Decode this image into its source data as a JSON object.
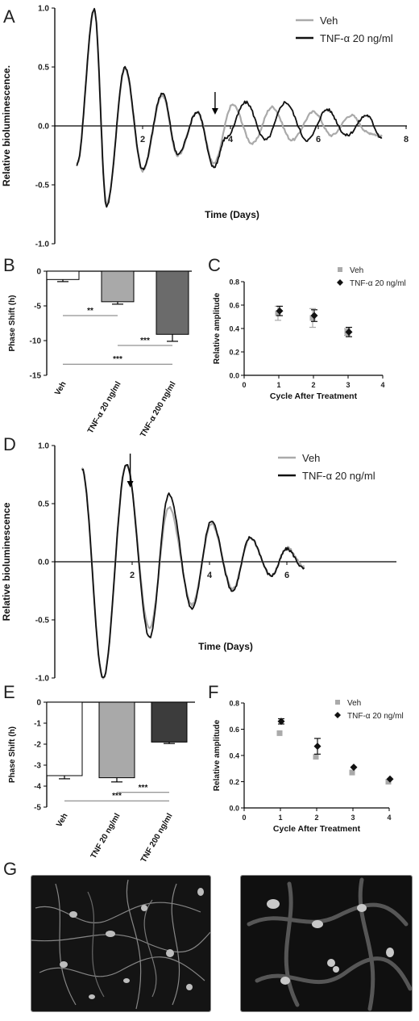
{
  "panels": {
    "A": "A",
    "B": "B",
    "C": "C",
    "D": "D",
    "E": "E",
    "F": "F",
    "G": "G"
  },
  "colors": {
    "veh": "#aaaaaa",
    "tnf": "#111111",
    "bar_veh": "#ffffff",
    "bar_tnf20": "#a9a9a9",
    "bar_tnf200_B": "#6b6b6b",
    "bar_tnf200_E": "#3c3c3c"
  },
  "chart_data": [
    {
      "id": "A",
      "type": "line",
      "ylabel": "Relative bioluminescence.",
      "xlabel": "Time (Days)",
      "ylim": [
        -1.0,
        1.0
      ],
      "xlim": [
        0,
        8
      ],
      "yticks": [
        "1.0",
        "0.5",
        "0.0",
        "-0.5",
        "-1.0"
      ],
      "xticks": [
        "2",
        "4",
        "6",
        "8"
      ],
      "legend": {
        "position": "top-right",
        "entries": [
          "Veh",
          "TNF-α 20 ng/ml"
        ]
      },
      "treatment_arrow_day": 3.65,
      "series": [
        {
          "name": "Veh",
          "color": "#aaaaaa",
          "x": [
            0.5,
            0.9,
            1.18,
            1.6,
            2.0,
            2.45,
            2.8,
            3.25,
            3.62,
            4.05,
            4.5,
            4.95,
            5.4,
            5.9,
            6.3,
            6.75,
            7.15,
            7.45
          ],
          "y": [
            -0.33,
            0.98,
            -0.66,
            0.48,
            -0.38,
            0.26,
            -0.25,
            0.12,
            -0.32,
            0.18,
            -0.15,
            0.16,
            -0.12,
            0.12,
            -0.08,
            0.09,
            -0.06,
            -0.09
          ]
        },
        {
          "name": "TNF-α 20 ng/ml",
          "color": "#111111",
          "x": [
            0.5,
            0.9,
            1.18,
            1.6,
            2.0,
            2.45,
            2.8,
            3.25,
            3.62,
            3.9,
            4.35,
            4.8,
            5.25,
            5.75,
            6.2,
            6.65,
            7.1,
            7.45
          ],
          "y": [
            -0.33,
            0.99,
            -0.68,
            0.5,
            -0.37,
            0.28,
            -0.24,
            0.12,
            -0.35,
            -0.1,
            0.2,
            -0.12,
            0.2,
            -0.12,
            0.14,
            -0.08,
            0.09,
            -0.1
          ]
        }
      ]
    },
    {
      "id": "B",
      "type": "bar",
      "ylabel": "Phase Shift (h)",
      "ylim": [
        -15,
        0
      ],
      "yticks": [
        "0",
        "-5",
        "-10",
        "-15"
      ],
      "categories": [
        "Veh",
        "TNF-α 20 ng/ml",
        "TNF-α 200 ng/ml"
      ],
      "values": [
        -1.2,
        -4.4,
        -9.1
      ],
      "errors": [
        0.3,
        0.35,
        1.0
      ],
      "significance": [
        {
          "from": 0,
          "to": 1,
          "label": "**",
          "y": -6.4
        },
        {
          "from": 1,
          "to": 2,
          "label": "***",
          "y": -10.7
        },
        {
          "from": 0,
          "to": 2,
          "label": "***",
          "y": -13.4
        }
      ]
    },
    {
      "id": "C",
      "type": "scatter",
      "ylabel": "Relative amplitude",
      "xlabel": "Cycle After Treatment",
      "xlim": [
        0,
        4
      ],
      "ylim": [
        0.0,
        0.8
      ],
      "xticks": [
        "0",
        "1",
        "2",
        "3",
        "4"
      ],
      "yticks": [
        "0.0",
        "0.2",
        "0.4",
        "0.6",
        "0.8"
      ],
      "legend": {
        "position": "top-right",
        "entries": [
          "Veh",
          "TNF-α 20 ng/ml"
        ]
      },
      "series": [
        {
          "name": "Veh",
          "marker": "square",
          "color": "#aaaaaa",
          "x": [
            1,
            2,
            3
          ],
          "y": [
            0.53,
            0.49,
            0.37
          ],
          "err": [
            0.06,
            0.08,
            0.03
          ]
        },
        {
          "name": "TNF-α 20 ng/ml",
          "marker": "diamond",
          "color": "#111111",
          "x": [
            1,
            2,
            3
          ],
          "y": [
            0.55,
            0.51,
            0.37
          ],
          "err": [
            0.04,
            0.05,
            0.04
          ]
        }
      ]
    },
    {
      "id": "D",
      "type": "line",
      "ylabel": "Relative bioluminescence",
      "xlabel": "Time (Days)",
      "ylim": [
        -1.0,
        1.0
      ],
      "yticks": [
        "1.0",
        "0.5",
        "0.0",
        "-0.5",
        "-1.0"
      ],
      "xticks": [
        "2",
        "4",
        "6"
      ],
      "legend": {
        "position": "top-right",
        "entries": [
          "Veh",
          "TNF-α 20 ng/ml"
        ]
      },
      "treatment_arrow_day": 1.95,
      "series": [
        {
          "name": "Veh",
          "color": "#aaaaaa",
          "x": [
            0.7,
            1.25,
            1.85,
            2.45,
            2.95,
            3.55,
            4.05,
            4.6,
            5.05,
            5.6,
            6.0,
            6.45
          ],
          "y": [
            0.8,
            -1.0,
            0.83,
            -0.58,
            0.47,
            -0.37,
            0.33,
            -0.23,
            0.2,
            -0.12,
            0.12,
            -0.04
          ]
        },
        {
          "name": "TNF-α 20 ng/ml",
          "color": "#111111",
          "x": [
            0.7,
            1.25,
            1.85,
            2.45,
            2.95,
            3.55,
            4.05,
            4.6,
            5.05,
            5.6,
            6.0,
            6.45
          ],
          "y": [
            0.8,
            -1.0,
            0.84,
            -0.65,
            0.58,
            -0.4,
            0.35,
            -0.25,
            0.21,
            -0.12,
            0.11,
            -0.06
          ]
        }
      ]
    },
    {
      "id": "E",
      "type": "bar",
      "ylabel": "Phase Shift (h)",
      "ylim": [
        -5,
        0
      ],
      "yticks": [
        "0",
        "-1",
        "-2",
        "-3",
        "-4",
        "-5"
      ],
      "categories": [
        "Veh",
        "TNF 20 ng/ml",
        "TNF 200 ng/ml"
      ],
      "values": [
        -3.5,
        -3.6,
        -1.9
      ],
      "errors": [
        0.15,
        0.2,
        0.07
      ],
      "significance": [
        {
          "from": 1,
          "to": 2,
          "label": "***",
          "y": -4.3
        },
        {
          "from": 0,
          "to": 2,
          "label": "***",
          "y": -4.7
        }
      ]
    },
    {
      "id": "F",
      "type": "scatter",
      "ylabel": "Relative amplitude",
      "xlabel": "Cycle After Treatment",
      "xlim": [
        0,
        4
      ],
      "ylim": [
        0.0,
        0.8
      ],
      "xticks": [
        "0",
        "1",
        "2",
        "3",
        "4"
      ],
      "yticks": [
        "0.0",
        "0.2",
        "0.4",
        "0.6",
        "0.8"
      ],
      "legend": {
        "position": "top-right",
        "entries": [
          "Veh",
          "TNF-α 20 ng/ml"
        ]
      },
      "series": [
        {
          "name": "Veh",
          "marker": "square",
          "color": "#aaaaaa",
          "x": [
            1,
            2,
            3,
            4
          ],
          "y": [
            0.57,
            0.39,
            0.27,
            0.2
          ],
          "err": [
            0,
            0,
            0,
            0
          ]
        },
        {
          "name": "TNF-α 20 ng/ml",
          "marker": "diamond",
          "color": "#111111",
          "x": [
            1,
            2,
            3,
            4
          ],
          "y": [
            0.66,
            0.47,
            0.31,
            0.22
          ],
          "err": [
            0.02,
            0.06,
            0,
            0
          ]
        }
      ]
    }
  ]
}
